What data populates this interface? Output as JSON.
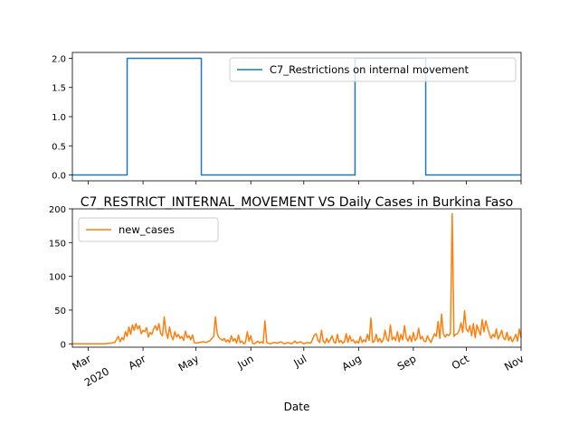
{
  "chart_data": [
    {
      "type": "line",
      "title": "",
      "xlabel": "",
      "ylabel": "",
      "ylim": [
        -0.1,
        2.1
      ],
      "yticks": [
        "0.0",
        "0.5",
        "1.0",
        "1.5",
        "2.0"
      ],
      "ytick_values": [
        0.0,
        0.5,
        1.0,
        1.5,
        2.0
      ],
      "legend_position": "upper right",
      "series": [
        {
          "name": "C7_Restrictions on internal movement",
          "color": "#1f77b4",
          "points": [
            [
              "2020-02-21",
              0
            ],
            [
              "2020-03-23",
              0
            ],
            [
              "2020-03-23",
              2
            ],
            [
              "2020-05-04",
              2
            ],
            [
              "2020-05-04",
              0
            ],
            [
              "2020-07-30",
              0
            ],
            [
              "2020-07-30",
              2
            ],
            [
              "2020-09-08",
              2
            ],
            [
              "2020-09-08",
              0
            ],
            [
              "2020-11-01",
              0
            ]
          ]
        }
      ]
    },
    {
      "type": "line",
      "title": "C7_RESTRICT_INTERNAL_MOVEMENT VS Daily Cases in Burkina Faso",
      "xlabel": "Date",
      "ylabel": "",
      "ylim": [
        -5,
        200
      ],
      "yticks": [
        "0",
        "50",
        "100",
        "150",
        "200"
      ],
      "ytick_values": [
        0,
        50,
        100,
        150,
        200
      ],
      "xlim": [
        "2020-02-21",
        "2020-11-01"
      ],
      "xticks": [
        {
          "date": "2020-03-01",
          "label": "Mar",
          "sub": "2020"
        },
        {
          "date": "2020-04-01",
          "label": "Apr",
          "sub": ""
        },
        {
          "date": "2020-05-01",
          "label": "May",
          "sub": ""
        },
        {
          "date": "2020-06-01",
          "label": "Jun",
          "sub": ""
        },
        {
          "date": "2020-07-01",
          "label": "Jul",
          "sub": ""
        },
        {
          "date": "2020-08-01",
          "label": "Aug",
          "sub": ""
        },
        {
          "date": "2020-09-01",
          "label": "Sep",
          "sub": ""
        },
        {
          "date": "2020-10-01",
          "label": "Oct",
          "sub": ""
        },
        {
          "date": "2020-11-01",
          "label": "Nov",
          "sub": ""
        }
      ],
      "legend_position": "upper left",
      "series": [
        {
          "name": "new_cases",
          "color": "#ff7f0e",
          "points": [
            [
              "2020-02-21",
              0
            ],
            [
              "2020-03-01",
              0
            ],
            [
              "2020-03-10",
              0
            ],
            [
              "2020-03-14",
              1
            ],
            [
              "2020-03-16",
              2
            ],
            [
              "2020-03-18",
              11
            ],
            [
              "2020-03-19",
              3
            ],
            [
              "2020-03-20",
              9
            ],
            [
              "2020-03-21",
              6
            ],
            [
              "2020-03-22",
              18
            ],
            [
              "2020-03-23",
              11
            ],
            [
              "2020-03-24",
              25
            ],
            [
              "2020-03-25",
              14
            ],
            [
              "2020-03-26",
              28
            ],
            [
              "2020-03-27",
              20
            ],
            [
              "2020-03-28",
              30
            ],
            [
              "2020-03-29",
              22
            ],
            [
              "2020-03-30",
              27
            ],
            [
              "2020-03-31",
              15
            ],
            [
              "2020-04-01",
              20
            ],
            [
              "2020-04-02",
              18
            ],
            [
              "2020-04-03",
              24
            ],
            [
              "2020-04-04",
              10
            ],
            [
              "2020-04-05",
              17
            ],
            [
              "2020-04-06",
              14
            ],
            [
              "2020-04-07",
              22
            ],
            [
              "2020-04-08",
              27
            ],
            [
              "2020-04-09",
              20
            ],
            [
              "2020-04-10",
              30
            ],
            [
              "2020-04-11",
              15
            ],
            [
              "2020-04-12",
              12
            ],
            [
              "2020-04-13",
              40
            ],
            [
              "2020-04-14",
              18
            ],
            [
              "2020-04-15",
              8
            ],
            [
              "2020-04-16",
              25
            ],
            [
              "2020-04-17",
              12
            ],
            [
              "2020-04-18",
              6
            ],
            [
              "2020-04-19",
              18
            ],
            [
              "2020-04-20",
              10
            ],
            [
              "2020-04-21",
              14
            ],
            [
              "2020-04-22",
              8
            ],
            [
              "2020-04-23",
              11
            ],
            [
              "2020-04-24",
              5
            ],
            [
              "2020-04-25",
              19
            ],
            [
              "2020-04-26",
              9
            ],
            [
              "2020-04-27",
              12
            ],
            [
              "2020-04-28",
              6
            ],
            [
              "2020-04-29",
              13
            ],
            [
              "2020-04-30",
              2
            ],
            [
              "2020-05-01",
              1
            ],
            [
              "2020-05-03",
              2
            ],
            [
              "2020-05-05",
              3
            ],
            [
              "2020-05-07",
              2
            ],
            [
              "2020-05-09",
              5
            ],
            [
              "2020-05-10",
              8
            ],
            [
              "2020-05-11",
              11
            ],
            [
              "2020-05-12",
              40
            ],
            [
              "2020-05-13",
              15
            ],
            [
              "2020-05-14",
              9
            ],
            [
              "2020-05-15",
              7
            ],
            [
              "2020-05-16",
              5
            ],
            [
              "2020-05-17",
              8
            ],
            [
              "2020-05-18",
              3
            ],
            [
              "2020-05-19",
              6
            ],
            [
              "2020-05-20",
              2
            ],
            [
              "2020-05-21",
              12
            ],
            [
              "2020-05-22",
              4
            ],
            [
              "2020-05-23",
              8
            ],
            [
              "2020-05-24",
              1
            ],
            [
              "2020-05-25",
              13
            ],
            [
              "2020-05-26",
              2
            ],
            [
              "2020-05-27",
              4
            ],
            [
              "2020-05-28",
              0
            ],
            [
              "2020-05-29",
              2
            ],
            [
              "2020-05-30",
              18
            ],
            [
              "2020-05-31",
              4
            ],
            [
              "2020-06-01",
              12
            ],
            [
              "2020-06-02",
              1
            ],
            [
              "2020-06-03",
              0
            ],
            [
              "2020-06-04",
              2
            ],
            [
              "2020-06-05",
              4
            ],
            [
              "2020-06-06",
              1
            ],
            [
              "2020-06-07",
              3
            ],
            [
              "2020-06-08",
              1
            ],
            [
              "2020-06-09",
              34
            ],
            [
              "2020-06-10",
              2
            ],
            [
              "2020-06-11",
              1
            ],
            [
              "2020-06-12",
              0
            ],
            [
              "2020-06-14",
              2
            ],
            [
              "2020-06-16",
              1
            ],
            [
              "2020-06-18",
              3
            ],
            [
              "2020-06-20",
              0
            ],
            [
              "2020-06-22",
              2
            ],
            [
              "2020-06-24",
              0
            ],
            [
              "2020-06-26",
              4
            ],
            [
              "2020-06-27",
              1
            ],
            [
              "2020-06-29",
              3
            ],
            [
              "2020-07-01",
              0
            ],
            [
              "2020-07-03",
              2
            ],
            [
              "2020-07-05",
              1
            ],
            [
              "2020-07-07",
              13
            ],
            [
              "2020-07-08",
              15
            ],
            [
              "2020-07-09",
              5
            ],
            [
              "2020-07-10",
              2
            ],
            [
              "2020-07-11",
              20
            ],
            [
              "2020-07-12",
              4
            ],
            [
              "2020-07-13",
              1
            ],
            [
              "2020-07-14",
              8
            ],
            [
              "2020-07-15",
              2
            ],
            [
              "2020-07-16",
              6
            ],
            [
              "2020-07-17",
              12
            ],
            [
              "2020-07-18",
              3
            ],
            [
              "2020-07-19",
              1
            ],
            [
              "2020-07-20",
              14
            ],
            [
              "2020-07-21",
              2
            ],
            [
              "2020-07-22",
              5
            ],
            [
              "2020-07-23",
              1
            ],
            [
              "2020-07-24",
              3
            ],
            [
              "2020-07-25",
              15
            ],
            [
              "2020-07-26",
              2
            ],
            [
              "2020-07-27",
              12
            ],
            [
              "2020-07-28",
              4
            ],
            [
              "2020-07-29",
              6
            ],
            [
              "2020-07-30",
              1
            ],
            [
              "2020-07-31",
              4
            ],
            [
              "2020-08-01",
              1
            ],
            [
              "2020-08-02",
              11
            ],
            [
              "2020-08-03",
              2
            ],
            [
              "2020-08-04",
              6
            ],
            [
              "2020-08-05",
              3
            ],
            [
              "2020-08-06",
              14
            ],
            [
              "2020-08-07",
              5
            ],
            [
              "2020-08-08",
              38
            ],
            [
              "2020-08-09",
              2
            ],
            [
              "2020-08-10",
              4
            ],
            [
              "2020-08-11",
              14
            ],
            [
              "2020-08-12",
              3
            ],
            [
              "2020-08-13",
              8
            ],
            [
              "2020-08-14",
              2
            ],
            [
              "2020-08-15",
              6
            ],
            [
              "2020-08-16",
              20
            ],
            [
              "2020-08-17",
              7
            ],
            [
              "2020-08-18",
              4
            ],
            [
              "2020-08-19",
              28
            ],
            [
              "2020-08-20",
              6
            ],
            [
              "2020-08-21",
              10
            ],
            [
              "2020-08-22",
              5
            ],
            [
              "2020-08-23",
              18
            ],
            [
              "2020-08-24",
              3
            ],
            [
              "2020-08-25",
              14
            ],
            [
              "2020-08-26",
              6
            ],
            [
              "2020-08-27",
              27
            ],
            [
              "2020-08-28",
              9
            ],
            [
              "2020-08-29",
              4
            ],
            [
              "2020-08-30",
              12
            ],
            [
              "2020-08-31",
              3
            ],
            [
              "2020-09-01",
              17
            ],
            [
              "2020-09-02",
              5
            ],
            [
              "2020-09-03",
              8
            ],
            [
              "2020-09-04",
              23
            ],
            [
              "2020-09-05",
              7
            ],
            [
              "2020-09-06",
              11
            ],
            [
              "2020-09-07",
              4
            ],
            [
              "2020-09-08",
              3
            ],
            [
              "2020-09-09",
              12
            ],
            [
              "2020-09-10",
              6
            ],
            [
              "2020-09-11",
              2
            ],
            [
              "2020-09-12",
              9
            ],
            [
              "2020-09-13",
              15
            ],
            [
              "2020-09-14",
              11
            ],
            [
              "2020-09-15",
              33
            ],
            [
              "2020-09-16",
              8
            ],
            [
              "2020-09-17",
              44
            ],
            [
              "2020-09-18",
              15
            ],
            [
              "2020-09-19",
              10
            ],
            [
              "2020-09-20",
              14
            ],
            [
              "2020-09-21",
              12
            ],
            [
              "2020-09-22",
              16
            ],
            [
              "2020-09-23",
              193
            ],
            [
              "2020-09-24",
              11
            ],
            [
              "2020-09-25",
              14
            ],
            [
              "2020-09-26",
              15
            ],
            [
              "2020-09-27",
              20
            ],
            [
              "2020-09-28",
              31
            ],
            [
              "2020-09-29",
              17
            ],
            [
              "2020-09-30",
              49
            ],
            [
              "2020-10-01",
              22
            ],
            [
              "2020-10-02",
              18
            ],
            [
              "2020-10-03",
              27
            ],
            [
              "2020-10-04",
              12
            ],
            [
              "2020-10-05",
              30
            ],
            [
              "2020-10-06",
              9
            ],
            [
              "2020-10-07",
              28
            ],
            [
              "2020-10-08",
              20
            ],
            [
              "2020-10-09",
              13
            ],
            [
              "2020-10-10",
              36
            ],
            [
              "2020-10-11",
              18
            ],
            [
              "2020-10-12",
              34
            ],
            [
              "2020-10-13",
              24
            ],
            [
              "2020-10-14",
              15
            ],
            [
              "2020-10-15",
              8
            ],
            [
              "2020-10-16",
              14
            ],
            [
              "2020-10-17",
              10
            ],
            [
              "2020-10-18",
              22
            ],
            [
              "2020-10-19",
              7
            ],
            [
              "2020-10-20",
              13
            ],
            [
              "2020-10-21",
              20
            ],
            [
              "2020-10-22",
              9
            ],
            [
              "2020-10-23",
              6
            ],
            [
              "2020-10-24",
              17
            ],
            [
              "2020-10-25",
              5
            ],
            [
              "2020-10-26",
              11
            ],
            [
              "2020-10-27",
              3
            ],
            [
              "2020-10-28",
              8
            ],
            [
              "2020-10-29",
              14
            ],
            [
              "2020-10-30",
              4
            ],
            [
              "2020-10-31",
              22
            ],
            [
              "2020-11-01",
              9
            ]
          ]
        }
      ]
    }
  ]
}
